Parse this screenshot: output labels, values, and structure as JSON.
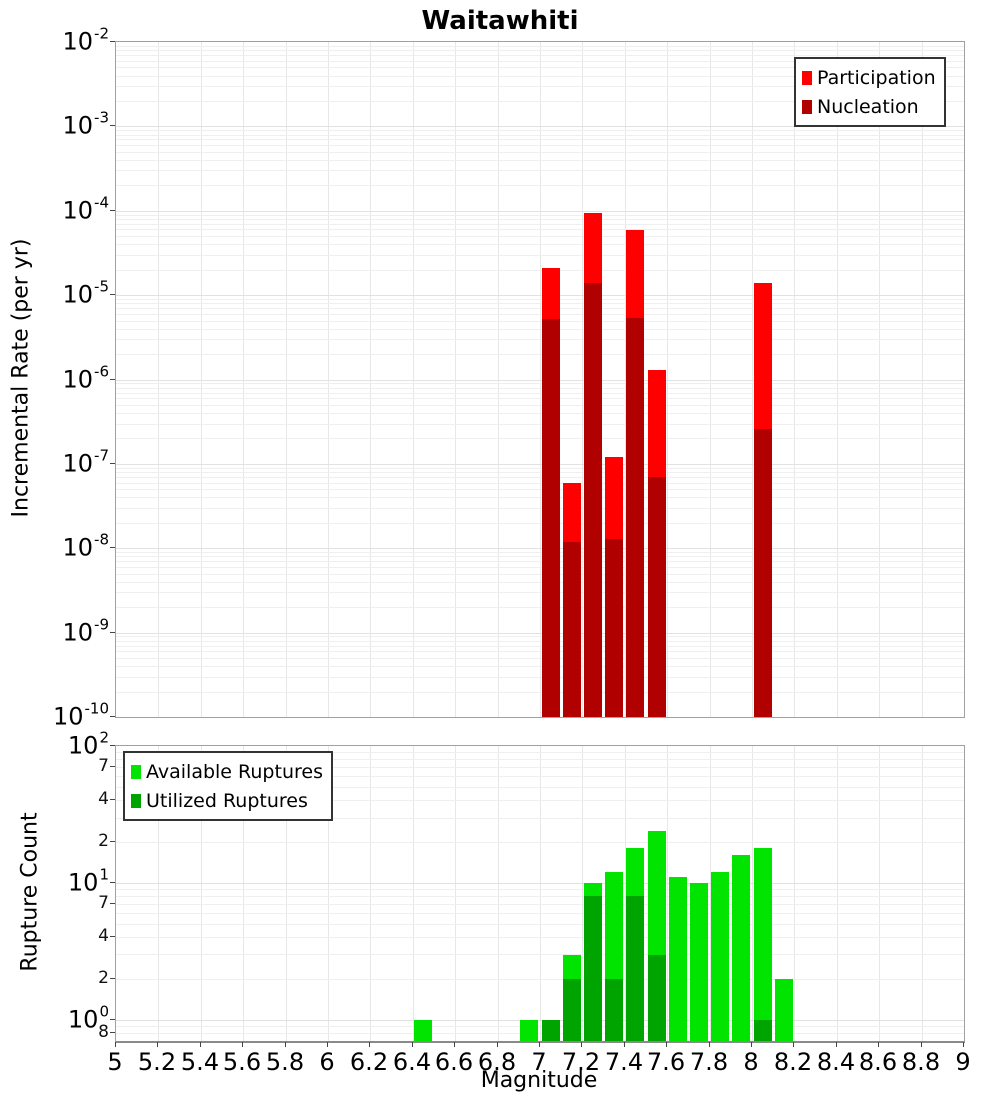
{
  "title": "Waitawhiti",
  "axes": {
    "x": {
      "label": "Magnitude",
      "min": 5,
      "max": 9,
      "tick_step": 0.2,
      "tick_labels": [
        "5",
        "5.2",
        "5.4",
        "5.6",
        "5.8",
        "6",
        "6.2",
        "6.4",
        "6.6",
        "6.8",
        "7",
        "7.2",
        "7.4",
        "7.6",
        "7.8",
        "8",
        "8.2",
        "8.4",
        "8.6",
        "8.8",
        "9"
      ]
    },
    "y_top": {
      "label": "Incremental Rate (per yr)",
      "scale": "log",
      "min": 1e-10,
      "max": 0.01
    },
    "y_bottom": {
      "label": "Rupture Count",
      "scale": "log",
      "min": 0.7,
      "max": 100
    }
  },
  "legends": {
    "rate": {
      "items": [
        {
          "label": "Participation",
          "color": "#ff0000"
        },
        {
          "label": "Nucleation",
          "color": "#b00000"
        }
      ]
    },
    "count": {
      "items": [
        {
          "label": "Available Ruptures",
          "color": "#00e400"
        },
        {
          "label": "Utilized Ruptures",
          "color": "#00a400"
        }
      ]
    }
  },
  "chart_data": [
    {
      "type": "bar",
      "panel": "top",
      "title": "Waitawhiti",
      "xlabel": "Magnitude",
      "ylabel": "Incremental Rate (per yr)",
      "y_scale": "log",
      "ylim": [
        1e-10,
        0.01
      ],
      "xlim": [
        5,
        9
      ],
      "bin_width": 0.1,
      "grid": true,
      "legend_position": "top-right",
      "y_ticks": [
        {
          "v": 0.01,
          "exp": "-2"
        },
        {
          "v": 0.001,
          "exp": "-3"
        },
        {
          "v": 0.0001,
          "exp": "-4"
        },
        {
          "v": 1e-05,
          "exp": "-5"
        },
        {
          "v": 1e-06,
          "exp": "-6"
        },
        {
          "v": 1e-07,
          "exp": "-7"
        },
        {
          "v": 1e-08,
          "exp": "-8"
        },
        {
          "v": 1e-09,
          "exp": "-9"
        },
        {
          "v": 1e-10,
          "exp": "-10"
        }
      ],
      "series": [
        {
          "name": "Participation",
          "color": "#ff0000",
          "points": [
            [
              7.0,
              2.1e-05
            ],
            [
              7.1,
              6e-08
            ],
            [
              7.2,
              9.5e-05
            ],
            [
              7.3,
              1.2e-07
            ],
            [
              7.4,
              6e-05
            ],
            [
              7.5,
              1.3e-06
            ],
            [
              8.0,
              1.4e-05
            ]
          ]
        },
        {
          "name": "Nucleation",
          "color": "#b00000",
          "points": [
            [
              7.0,
              5.2e-06
            ],
            [
              7.1,
              1.2e-08
            ],
            [
              7.2,
              1.4e-05
            ],
            [
              7.3,
              1.3e-08
            ],
            [
              7.4,
              5.3e-06
            ],
            [
              7.5,
              7e-08
            ],
            [
              8.0,
              2.6e-07
            ]
          ]
        }
      ]
    },
    {
      "type": "bar",
      "panel": "bottom",
      "xlabel": "Magnitude",
      "ylabel": "Rupture Count",
      "y_scale": "log",
      "ylim": [
        0.7,
        100
      ],
      "xlim": [
        5,
        9
      ],
      "bin_width": 0.1,
      "grid": true,
      "legend_position": "top-left",
      "y_ticks": [
        {
          "v": 100,
          "exp": "2"
        },
        {
          "v": 70,
          "text": "7"
        },
        {
          "v": 40,
          "text": "4"
        },
        {
          "v": 20,
          "text": "2"
        },
        {
          "v": 10,
          "exp": "1"
        },
        {
          "v": 7,
          "text": "7"
        },
        {
          "v": 4,
          "text": "4"
        },
        {
          "v": 2,
          "text": "2"
        },
        {
          "v": 1,
          "exp": "0"
        },
        {
          "v": 0.8,
          "text": "8"
        }
      ],
      "series": [
        {
          "name": "Available Ruptures",
          "color": "#00e400",
          "points": [
            [
              6.4,
              1
            ],
            [
              6.9,
              1
            ],
            [
              7.0,
              1
            ],
            [
              7.1,
              3
            ],
            [
              7.2,
              10
            ],
            [
              7.3,
              12
            ],
            [
              7.4,
              18
            ],
            [
              7.5,
              24
            ],
            [
              7.6,
              11
            ],
            [
              7.7,
              10
            ],
            [
              7.8,
              12
            ],
            [
              7.9,
              16
            ],
            [
              8.0,
              18
            ],
            [
              8.1,
              2
            ]
          ]
        },
        {
          "name": "Utilized Ruptures",
          "color": "#00a400",
          "points": [
            [
              7.0,
              1
            ],
            [
              7.1,
              2
            ],
            [
              7.2,
              8
            ],
            [
              7.3,
              2
            ],
            [
              7.4,
              8
            ],
            [
              7.5,
              3
            ],
            [
              8.0,
              1
            ]
          ]
        }
      ]
    }
  ]
}
